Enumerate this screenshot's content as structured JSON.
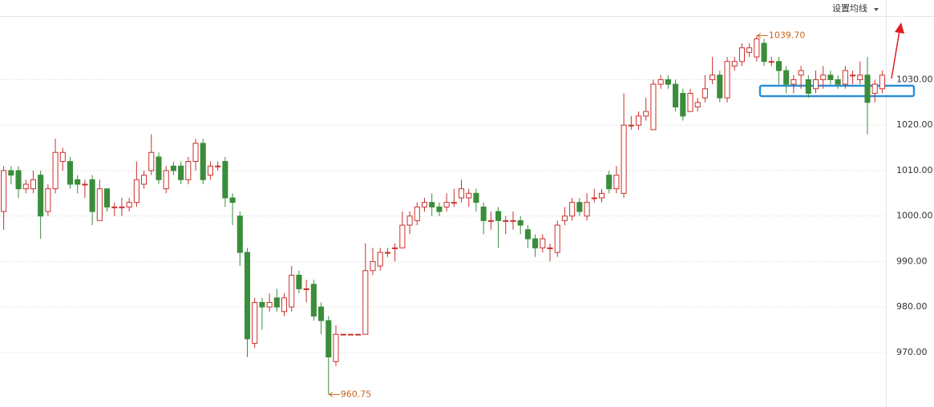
{
  "chart_data": {
    "type": "candlestick",
    "ma_button": "设置均线",
    "up_color": "#c9302c",
    "down_color": "#3a8d3a",
    "grid": true,
    "ylim": [
      958,
      1044
    ],
    "yticks": [
      {
        "value": 970,
        "label": "970.00"
      },
      {
        "value": 980,
        "label": "980.00"
      },
      {
        "value": 990,
        "label": "990.00"
      },
      {
        "value": 1000,
        "label": "1000.00"
      },
      {
        "value": 1010,
        "label": "1010.00"
      },
      {
        "value": 1020,
        "label": "1020.00"
      },
      {
        "value": 1030,
        "label": "1030.00"
      }
    ],
    "annotations": [
      {
        "value": 1039.7,
        "label": "1039.70"
      },
      {
        "value": 960.75,
        "label": "960.75"
      }
    ],
    "open": [
      1001,
      1010,
      1010,
      1006,
      1006,
      1009,
      1001,
      1006,
      1012,
      1012,
      1008,
      1007,
      1008,
      999,
      1006,
      1002,
      1002,
      1002,
      1003,
      1007,
      1010,
      1013,
      1006,
      1011,
      1011,
      1008,
      1012,
      1016,
      1009,
      1011,
      1012,
      1004,
      1000,
      992,
      972,
      981,
      980,
      982,
      979,
      980,
      987,
      984,
      985,
      980,
      977,
      968,
      974,
      974,
      974,
      974,
      988,
      989,
      992,
      993,
      993,
      998,
      999,
      1002,
      1003,
      1002,
      1002,
      1003,
      1004,
      1004,
      1005,
      1002,
      999,
      1001,
      999,
      999,
      999,
      997,
      995,
      993,
      993,
      992,
      999,
      1000,
      1003,
      1000,
      1004,
      1004,
      1009,
      1006,
      1005,
      1020,
      1020,
      1022,
      1019,
      1029,
      1030,
      1029,
      1027,
      1023,
      1024,
      1026,
      1030,
      1031,
      1026,
      1033,
      1034,
      1036,
      1035,
      1038,
      1034,
      1034,
      1032,
      1029,
      1031,
      1030,
      1028,
      1030,
      1031,
      1030,
      1029,
      1031,
      1030,
      1031,
      1027,
      1028
    ],
    "high": [
      1011,
      1011,
      1011,
      1008,
      1010,
      1010,
      1007,
      1017,
      1015,
      1013,
      1009,
      1008,
      1009,
      1008,
      1006,
      1003,
      1004,
      1004,
      1012,
      1010,
      1018,
      1014,
      1011,
      1012,
      1012,
      1013,
      1017,
      1017,
      1012,
      1012,
      1013,
      1005,
      1001,
      993,
      982,
      982,
      983,
      984,
      983,
      989,
      988,
      986,
      986,
      981,
      978,
      976,
      974,
      974,
      974,
      994,
      993,
      993,
      993,
      994,
      1001,
      1001,
      1003,
      1004,
      1005,
      1003,
      1005,
      1006,
      1008,
      1006,
      1006,
      1003,
      1001,
      1002,
      1000,
      1001,
      1000,
      998,
      996,
      996,
      994,
      999,
      1002,
      1004,
      1004,
      1005,
      1006,
      1006,
      1010,
      1011,
      1027,
      1022,
      1023,
      1026,
      1030,
      1031,
      1031,
      1030,
      1028,
      1028,
      1026,
      1031,
      1035,
      1032,
      1035,
      1035,
      1038,
      1038,
      1039.7,
      1039,
      1035,
      1035,
      1033,
      1031,
      1033,
      1031,
      1032,
      1033,
      1032,
      1031,
      1033,
      1032,
      1034,
      1035,
      1030,
      1032
    ],
    "low": [
      997,
      1007,
      1004,
      1005,
      1005,
      995,
      1000,
      1005,
      1010,
      1006,
      1005,
      1004,
      998,
      999,
      1001,
      1000,
      1000,
      1001,
      1002,
      1006,
      1009,
      1007,
      1005,
      1009,
      1007,
      1007,
      1010,
      1007,
      1008,
      1010,
      1002,
      998,
      989,
      969,
      971,
      975,
      979,
      979,
      978,
      979,
      983,
      981,
      977,
      974,
      960.75,
      967,
      974,
      974,
      974,
      974,
      987,
      988,
      991,
      990,
      993,
      996,
      998,
      1001,
      1000,
      1000,
      1001,
      1002,
      1003,
      1002,
      1001,
      996,
      997,
      993,
      996,
      997,
      996,
      993,
      991,
      992,
      990,
      991,
      998,
      999,
      1000,
      999,
      1003,
      1003,
      1005,
      1005,
      1004,
      1019,
      1019,
      1021,
      1019,
      1028,
      1028,
      1023,
      1021,
      1023,
      1023,
      1025,
      1029,
      1025,
      1025,
      1032,
      1033,
      1035,
      1034,
      1033,
      1033,
      1029,
      1027,
      1027,
      1028,
      1026,
      1027,
      1028,
      1029,
      1028,
      1028,
      1029,
      1029,
      1018,
      1025,
      1027
    ],
    "close": [
      1010,
      1009,
      1006,
      1007,
      1008,
      1000,
      1006,
      1014,
      1014,
      1007,
      1007,
      1007,
      1001,
      1006,
      1002,
      1002,
      1002,
      1003,
      1008,
      1009,
      1014,
      1008,
      1010,
      1010,
      1008,
      1012,
      1016,
      1008,
      1011,
      1011,
      1004,
      1003,
      992,
      973,
      981,
      980,
      981,
      980,
      982,
      987,
      984,
      984,
      978,
      977,
      969,
      974,
      974,
      974,
      974,
      988,
      990,
      992,
      992,
      993,
      998,
      1000,
      1002,
      1003,
      1002,
      1001,
      1003,
      1003,
      1006,
      1005,
      1003,
      999,
      999,
      999,
      999,
      999,
      998,
      995,
      993,
      995,
      993,
      998,
      1000,
      1003,
      1001,
      1003,
      1004,
      1005,
      1006,
      1009,
      1020,
      1020,
      1022,
      1023,
      1029,
      1030,
      1029,
      1024,
      1022,
      1027,
      1025,
      1028,
      1031,
      1026,
      1034,
      1034,
      1037,
      1037,
      1039,
      1034,
      1034,
      1032,
      1029,
      1030,
      1032,
      1027,
      1030,
      1031,
      1030,
      1029,
      1032,
      1031,
      1031,
      1025,
      1029,
      1031
    ]
  }
}
